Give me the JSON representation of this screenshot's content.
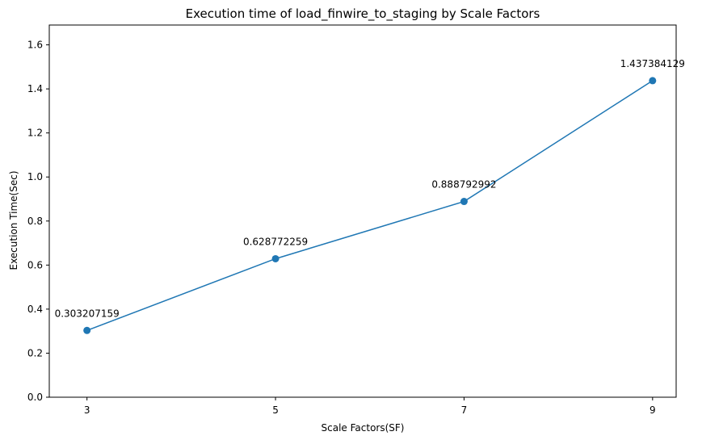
{
  "chart_data": {
    "type": "line",
    "title": "Execution time of load_finwire_to_staging by Scale Factors",
    "xlabel": "Scale Factors(SF)",
    "ylabel": "Execution Time(Sec)",
    "x": [
      3,
      5,
      7,
      9
    ],
    "xticks": [
      "3",
      "5",
      "7",
      "9"
    ],
    "series": [
      {
        "values": [
          0.303207159,
          0.628772259,
          0.888792992,
          1.437384129
        ],
        "labels": [
          "0.303207159",
          "0.628772259",
          "0.888792992",
          "1.437384129"
        ],
        "color": "#1f77b4"
      }
    ],
    "yticks": [
      "0.0",
      "0.2",
      "0.4",
      "0.6",
      "0.8",
      "1.0",
      "1.2",
      "1.4",
      "1.6"
    ],
    "ylim": [
      0,
      1.69
    ],
    "xlim": [
      2.6,
      9.25
    ],
    "grid": false
  }
}
